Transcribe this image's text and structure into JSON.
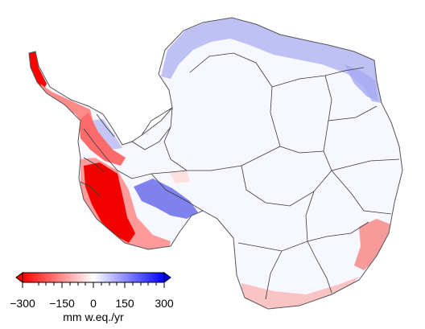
{
  "colorbar": {
    "min": -300,
    "max": 300,
    "extend": "both",
    "ticks": [
      "−300",
      "−150",
      "0",
      "150",
      "300"
    ],
    "tick_values": [
      -300,
      -150,
      0,
      150,
      300
    ],
    "units": "mm w.eq./yr",
    "colors": {
      "negative_end": "#ff0000",
      "neutral": "#ffffff",
      "positive_end": "#0000ff"
    }
  },
  "map": {
    "region": "Antarctica",
    "coastline_color": "#555555",
    "basin_boundaries": true,
    "fill_base": "#f7f7ff",
    "highlights": [
      {
        "area": "Antarctic Peninsula tip",
        "trend": "strong negative",
        "color": "#ff0000"
      },
      {
        "area": "Bellingshausen / Amundsen coast",
        "trend": "strong negative",
        "color": "#f20000"
      },
      {
        "area": "Ellsworth Land",
        "trend": "positive",
        "color": "#6d70ee"
      },
      {
        "area": "Dronning Maud Land coast",
        "trend": "weak positive",
        "color": "#a8abf2"
      },
      {
        "area": "Wilkes Land coast",
        "trend": "negative",
        "color": "#f57f7f"
      },
      {
        "area": "Victoria Land coast",
        "trend": "weak negative",
        "color": "#f9b5b5"
      }
    ]
  }
}
